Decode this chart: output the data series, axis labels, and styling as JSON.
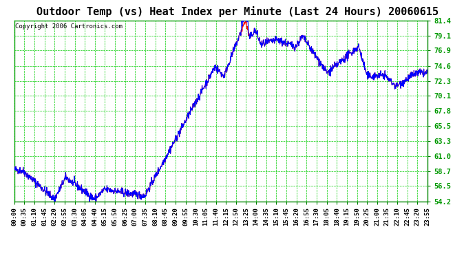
{
  "title": "Outdoor Temp (vs) Heat Index per Minute (Last 24 Hours) 20060615",
  "copyright": "Copyright 2006 Cartronics.com",
  "yticks": [
    54.2,
    56.5,
    58.7,
    61.0,
    63.3,
    65.5,
    67.8,
    70.1,
    72.3,
    74.6,
    76.9,
    79.1,
    81.4
  ],
  "ymin": 54.2,
  "ymax": 81.4,
  "xtick_labels": [
    "00:00",
    "00:35",
    "01:10",
    "01:45",
    "02:20",
    "02:55",
    "03:30",
    "04:05",
    "04:40",
    "05:15",
    "05:50",
    "06:25",
    "07:00",
    "07:35",
    "08:10",
    "08:45",
    "09:20",
    "09:55",
    "10:30",
    "11:05",
    "11:40",
    "12:15",
    "12:50",
    "13:25",
    "14:00",
    "14:35",
    "15:10",
    "15:45",
    "16:20",
    "16:55",
    "17:30",
    "18:05",
    "18:40",
    "19:15",
    "19:50",
    "20:25",
    "21:00",
    "21:35",
    "22:10",
    "22:45",
    "23:20",
    "23:55"
  ],
  "plot_bg": "#ffffff",
  "outer_bg": "#ffffff",
  "grid_color": "#00cc00",
  "temp_color": "#ff0000",
  "heat_color": "#0000ff",
  "title_fontsize": 11,
  "copyright_fontsize": 6.5,
  "tick_fontsize": 7.5,
  "title_color": "#000000",
  "copyright_color": "#000000",
  "tick_color": "#000000",
  "ytick_color": "#009900"
}
